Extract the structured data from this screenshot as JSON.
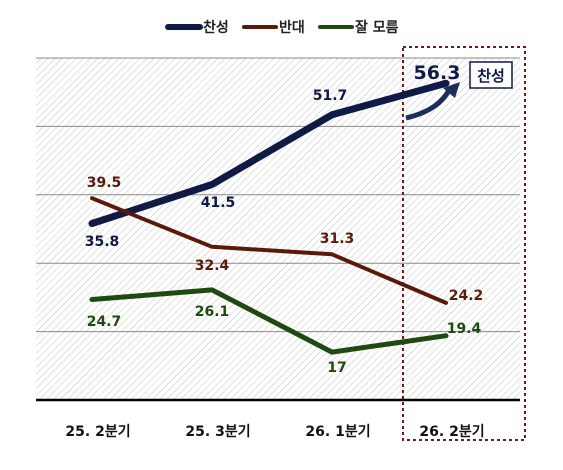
{
  "chart_data": {
    "type": "line",
    "categories": [
      "25. 2분기",
      "25. 3분기",
      "26. 1분기",
      "26. 2분기"
    ],
    "series": [
      {
        "name": "찬성",
        "values": [
          35.8,
          41.5,
          51.7,
          56.3
        ],
        "color": "#0f1a45"
      },
      {
        "name": "반대",
        "values": [
          39.5,
          32.4,
          31.3,
          24.2
        ],
        "color": "#5a1a0a"
      },
      {
        "name": "잘 모름",
        "values": [
          24.7,
          26.1,
          17,
          19.4
        ],
        "color": "#1e4a12"
      }
    ],
    "value_labels": [
      "35.8",
      "41.5",
      "51.7",
      "56.3",
      "39.5",
      "32.4",
      "31.3",
      "24.2",
      "24.7",
      "26.1",
      "17",
      "19.4"
    ],
    "ylim": [
      10,
      60
    ],
    "grid": true,
    "legend": "top",
    "highlight": {
      "category": "26. 2분기",
      "callout": "찬성"
    }
  }
}
